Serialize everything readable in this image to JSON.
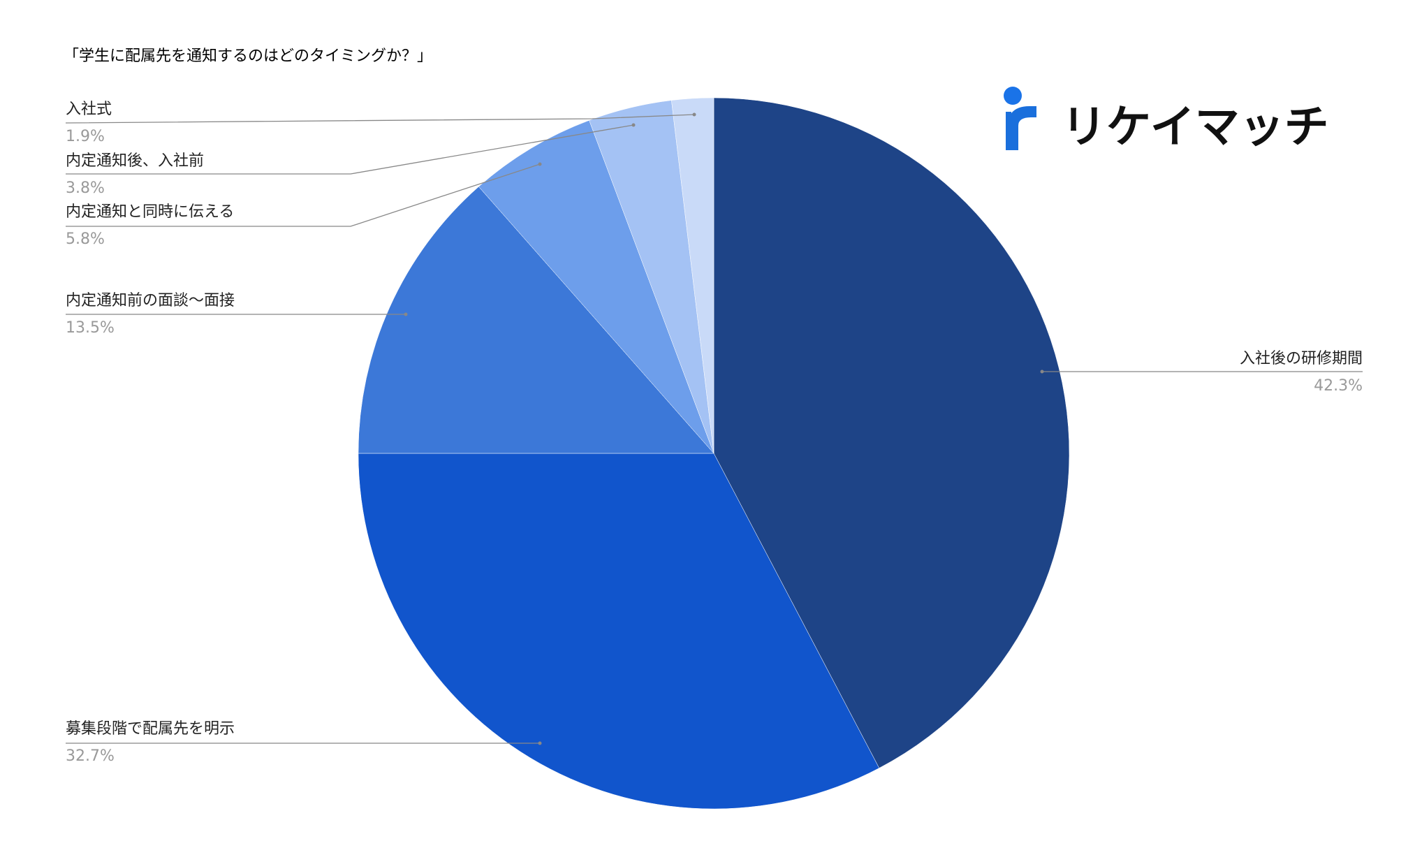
{
  "chart_data": {
    "type": "pie",
    "title": "「学生に配属先を通知するのはどのタイミングか？」",
    "logo": "リケイマッチ",
    "categories": [
      "入社後の研修期間",
      "募集段階で配属先を明示",
      "内定通知前の面談～面接",
      "内定通知と同時に伝える",
      "内定通知後、入社前",
      "入社式"
    ],
    "values": [
      42.3,
      32.7,
      13.5,
      5.8,
      3.8,
      1.9
    ],
    "value_labels": [
      "42.3%",
      "32.7%",
      "13.5%",
      "5.8%",
      "3.8%",
      "1.9%"
    ],
    "colors": [
      "#1e4487",
      "#1155cc",
      "#3c78d8",
      "#6d9eeb",
      "#a4c2f4",
      "#c9daf8"
    ]
  }
}
